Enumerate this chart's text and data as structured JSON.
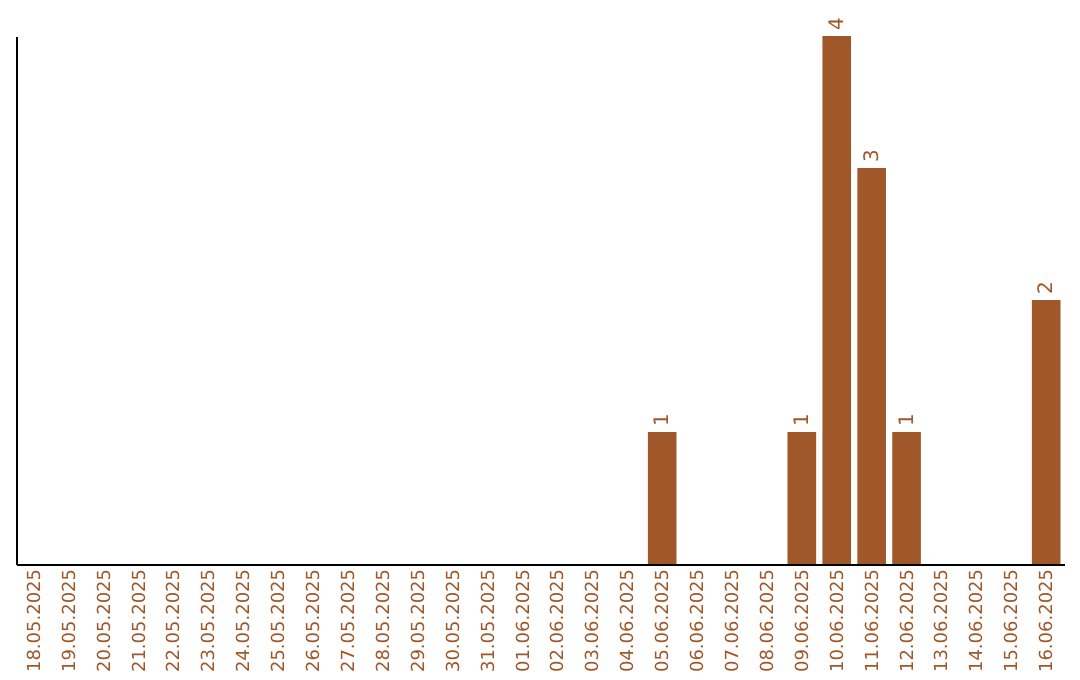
{
  "chart_data": {
    "type": "bar",
    "categories": [
      "18.05.2025",
      "19.05.2025",
      "20.05.2025",
      "21.05.2025",
      "22.05.2025",
      "23.05.2025",
      "24.05.2025",
      "25.05.2025",
      "26.05.2025",
      "27.05.2025",
      "28.05.2025",
      "29.05.2025",
      "30.05.2025",
      "31.05.2025",
      "01.06.2025",
      "02.06.2025",
      "03.06.2025",
      "04.06.2025",
      "05.06.2025",
      "06.06.2025",
      "07.06.2025",
      "08.06.2025",
      "09.06.2025",
      "10.06.2025",
      "11.06.2025",
      "12.06.2025",
      "13.06.2025",
      "14.06.2025",
      "15.06.2025",
      "16.06.2025"
    ],
    "values": [
      null,
      null,
      null,
      null,
      null,
      null,
      null,
      null,
      null,
      null,
      null,
      null,
      null,
      null,
      null,
      null,
      null,
      null,
      1,
      null,
      null,
      null,
      1,
      4,
      3,
      1,
      null,
      null,
      null,
      2
    ],
    "data_labels": true,
    "color": "#a0572a",
    "grid": false
  }
}
